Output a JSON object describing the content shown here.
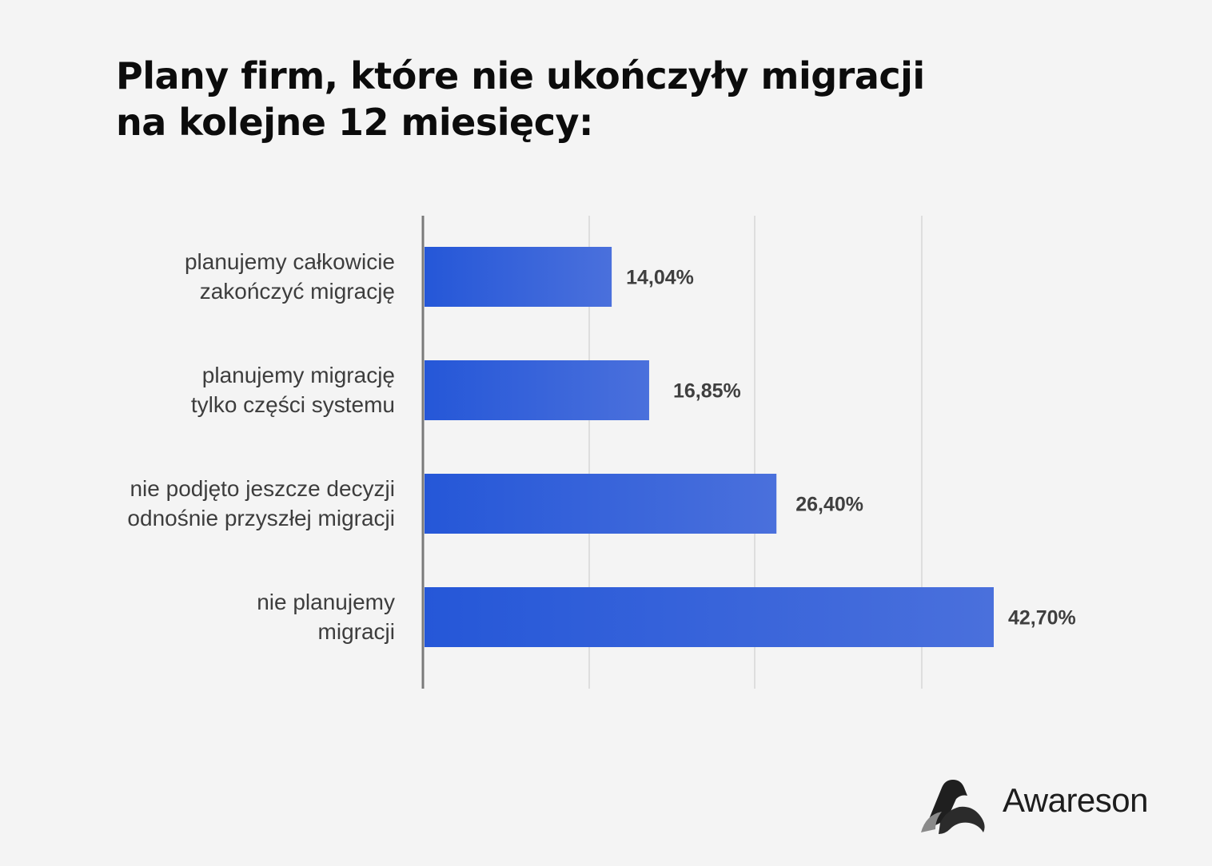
{
  "title": {
    "line1": "Plany firm, które nie ukończyły migracji",
    "line2": "na kolejne 12 miesięcy:"
  },
  "logo": {
    "name": "Awareson",
    "icon": "awareson-logo-icon"
  },
  "colors": {
    "background": "#f4f4f4",
    "bar_start": "#2557d8",
    "bar_end": "#4a70dc",
    "axis": "#7a7a7a",
    "grid": "#d6d6d6"
  },
  "chart_data": {
    "type": "bar",
    "orientation": "horizontal",
    "categories": [
      [
        "planujemy całkowicie",
        "zakończyć migrację"
      ],
      [
        "planujemy migrację",
        "tylko części systemu"
      ],
      [
        "nie podjęto jeszcze decyzji",
        "odnośnie przyszłej migracji"
      ],
      [
        "nie planujemy",
        "migracji"
      ]
    ],
    "values": [
      14.04,
      16.85,
      26.4,
      42.7
    ],
    "value_labels": [
      "14,04%",
      "16,85%",
      "26,40%",
      "42,70%"
    ],
    "xlim": [
      0,
      50
    ],
    "gridlines": [
      12.5,
      25,
      37.5
    ],
    "grid": true,
    "legend": false,
    "title": "Plany firm, które nie ukończyły migracji na kolejne 12 miesięcy:",
    "xlabel": "",
    "ylabel": ""
  }
}
